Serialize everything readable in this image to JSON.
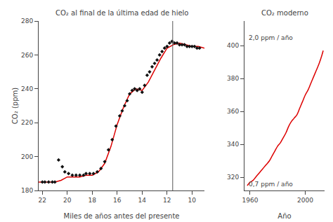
{
  "chart_data": [
    {
      "type": "line",
      "title": "CO₂ al final de la última edad de hielo",
      "xlabel": "Miles de años antes del presente",
      "ylabel": "CO₂ (ppm)",
      "xlim": [
        22.3,
        9.0
      ],
      "ylim": [
        180,
        280
      ],
      "xticks": [
        22,
        20,
        18,
        16,
        14,
        12,
        10
      ],
      "yticks": [
        180,
        200,
        220,
        240,
        260,
        280
      ],
      "grid": false,
      "series": [
        {
          "type": "line",
          "line_style": "solid",
          "color": "#dd0000",
          "x": [
            22.3,
            22.0,
            21.5,
            21.0,
            20.5,
            20.0,
            19.5,
            19.0,
            18.5,
            18.0,
            17.5,
            17.0,
            16.5,
            16.0,
            15.5,
            15.0,
            14.5,
            14.0,
            13.5,
            13.0,
            12.5,
            12.0,
            11.5,
            11.0,
            10.5,
            10.0,
            9.5,
            9.0
          ],
          "values": [
            185,
            185,
            185,
            185,
            186,
            188,
            188,
            188,
            189,
            189,
            191,
            196,
            206,
            219,
            229,
            237,
            240,
            239,
            244,
            251,
            258,
            264,
            266,
            267,
            266,
            265,
            265,
            264
          ]
        },
        {
          "type": "scatter",
          "marker": "diamond",
          "color": "#111111",
          "x": [
            22.0,
            21.8,
            21.5,
            21.2,
            21.0,
            20.7,
            20.4,
            20.2,
            19.9,
            19.6,
            19.3,
            19.0,
            18.7,
            18.5,
            18.2,
            17.9,
            17.6,
            17.3,
            17.0,
            16.7,
            16.4,
            16.1,
            15.8,
            15.6,
            15.4,
            15.2,
            15.0,
            14.8,
            14.6,
            14.4,
            14.2,
            14.0,
            13.8,
            13.6,
            13.4,
            13.2,
            13.0,
            12.8,
            12.6,
            12.4,
            12.2,
            12.0,
            11.8,
            11.6,
            11.4,
            11.2,
            11.0,
            10.8,
            10.6,
            10.4,
            10.2,
            10.0,
            9.8,
            9.6,
            9.4
          ],
          "values": [
            185,
            185,
            185,
            185,
            185,
            198,
            194,
            191,
            190,
            189,
            189,
            189,
            189,
            190,
            190,
            190,
            191,
            193,
            197,
            204,
            210,
            218,
            224,
            227,
            230,
            233,
            237,
            239,
            240,
            239,
            240,
            238,
            242,
            248,
            250,
            253,
            255,
            257,
            260,
            262,
            264,
            265,
            267,
            268,
            267,
            267,
            266,
            266,
            266,
            265,
            265,
            265,
            265,
            264,
            264
          ]
        }
      ],
      "vlines": [
        {
          "x": 11.55,
          "color": "#555555"
        }
      ]
    },
    {
      "type": "line",
      "title": "CO₂ moderno",
      "xlabel": "Año",
      "xlim": [
        1956,
        2014
      ],
      "ylim": [
        312,
        415
      ],
      "xticks": [
        1960,
        2000
      ],
      "yticks": [
        320,
        340,
        360,
        380,
        400
      ],
      "grid": false,
      "series": [
        {
          "type": "line",
          "line_style": "smooth",
          "color": "#dd0000",
          "x": [
            1958,
            1960,
            1962,
            1964,
            1966,
            1968,
            1970,
            1972,
            1974,
            1976,
            1978,
            1980,
            1982,
            1984,
            1986,
            1988,
            1990,
            1992,
            1994,
            1996,
            1998,
            2000,
            2002,
            2004,
            2006,
            2008,
            2010,
            2012,
            2013
          ],
          "values": [
            315,
            317,
            318,
            320,
            322,
            324,
            326,
            328,
            330,
            333,
            336,
            339,
            341,
            344,
            347,
            351,
            354,
            356,
            358,
            362,
            366,
            370,
            373,
            377,
            381,
            385,
            389,
            394,
            397
          ]
        }
      ],
      "annotations": [
        {
          "text": "2,0 ppm / año",
          "x": 1958,
          "y": 405
        },
        {
          "text": "0,7 ppm / año",
          "x": 1958,
          "y": 316
        }
      ]
    }
  ]
}
